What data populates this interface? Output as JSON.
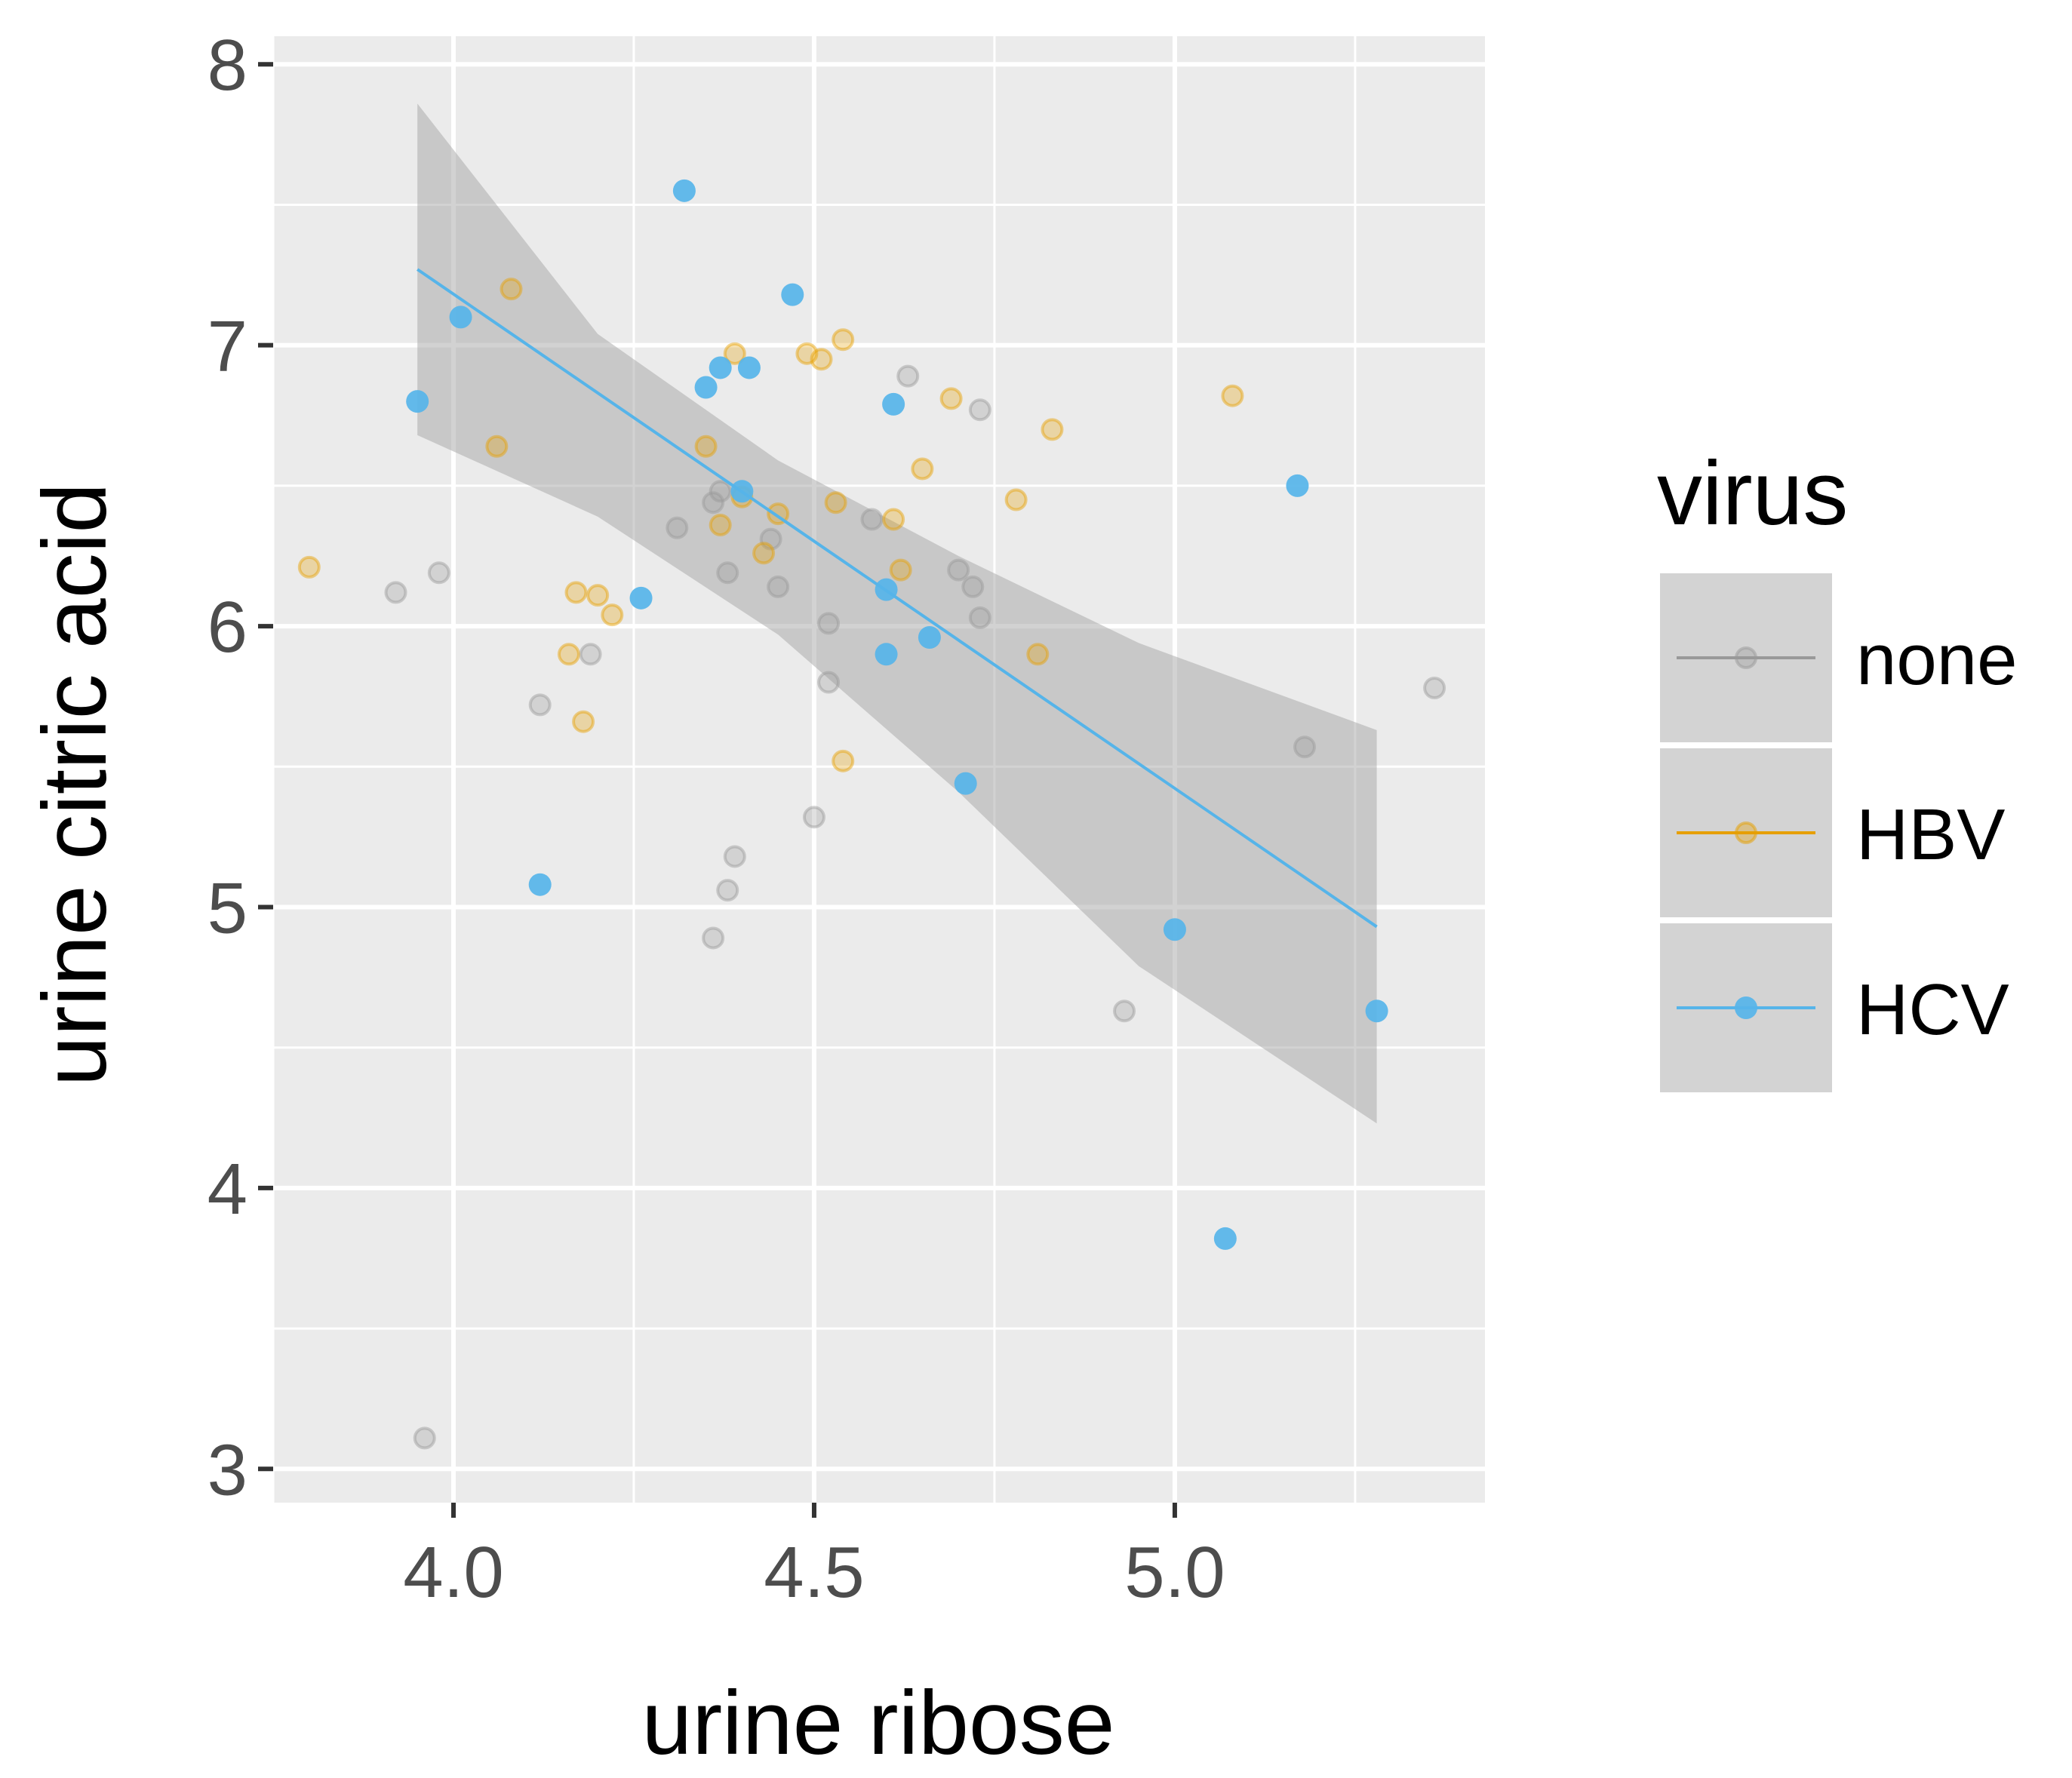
{
  "chart_data": {
    "type": "scatter",
    "xlabel": "urine ribose",
    "ylabel": "urine citric acid",
    "xlim": [
      3.75,
      5.43
    ],
    "ylim": [
      2.88,
      8.1
    ],
    "x_ticks": [
      4.0,
      4.5,
      5.0
    ],
    "x_tick_labels": [
      "4.0",
      "4.5",
      "5.0"
    ],
    "x_minor_ticks": [
      3.75,
      4.25,
      4.75,
      5.25
    ],
    "y_ticks": [
      3,
      4,
      5,
      6,
      7,
      8
    ],
    "y_tick_labels": [
      "3",
      "4",
      "5",
      "6",
      "7",
      "8"
    ],
    "y_minor_ticks": [
      3.5,
      4.5,
      5.5,
      6.5,
      7.5
    ],
    "grid": true,
    "background_color": "#EBEBEB",
    "legend": {
      "title": "virus",
      "position": "right"
    },
    "series": [
      {
        "name": "none",
        "color": "#999999",
        "faded": true,
        "points": [
          [
            3.92,
            6.12
          ],
          [
            3.98,
            6.19
          ],
          [
            3.96,
            3.11
          ],
          [
            4.12,
            5.72
          ],
          [
            4.19,
            5.9
          ],
          [
            4.31,
            6.35
          ],
          [
            4.36,
            6.44
          ],
          [
            4.37,
            6.48
          ],
          [
            4.38,
            6.19
          ],
          [
            4.44,
            6.31
          ],
          [
            4.45,
            6.14
          ],
          [
            4.52,
            6.01
          ],
          [
            4.52,
            5.8
          ],
          [
            4.5,
            5.32
          ],
          [
            4.39,
            5.18
          ],
          [
            4.38,
            5.06
          ],
          [
            4.36,
            4.89
          ],
          [
            4.58,
            6.38
          ],
          [
            4.63,
            6.89
          ],
          [
            4.73,
            6.77
          ],
          [
            4.7,
            6.2
          ],
          [
            4.72,
            6.14
          ],
          [
            4.73,
            6.03
          ],
          [
            4.93,
            4.63
          ],
          [
            5.18,
            5.57
          ],
          [
            5.36,
            5.78
          ]
        ]
      },
      {
        "name": "HBV",
        "color": "#E69F00",
        "faded": true,
        "points": [
          [
            3.8,
            6.21
          ],
          [
            4.06,
            6.64
          ],
          [
            4.08,
            7.2
          ],
          [
            4.16,
            5.9
          ],
          [
            4.17,
            6.12
          ],
          [
            4.18,
            5.66
          ],
          [
            4.2,
            6.11
          ],
          [
            4.22,
            6.04
          ],
          [
            4.35,
            6.64
          ],
          [
            4.37,
            6.36
          ],
          [
            4.39,
            6.97
          ],
          [
            4.4,
            6.46
          ],
          [
            4.43,
            6.26
          ],
          [
            4.45,
            6.4
          ],
          [
            4.49,
            6.97
          ],
          [
            4.51,
            6.95
          ],
          [
            4.53,
            6.44
          ],
          [
            4.54,
            7.02
          ],
          [
            4.54,
            5.52
          ],
          [
            4.61,
            6.38
          ],
          [
            4.62,
            6.2
          ],
          [
            4.65,
            6.56
          ],
          [
            4.69,
            6.81
          ],
          [
            4.78,
            6.45
          ],
          [
            4.81,
            5.9
          ],
          [
            4.83,
            6.7
          ],
          [
            5.08,
            6.82
          ]
        ]
      },
      {
        "name": "HCV",
        "color": "#56B4E9",
        "faded": false,
        "points": [
          [
            3.95,
            6.8
          ],
          [
            4.01,
            7.1
          ],
          [
            4.12,
            5.08
          ],
          [
            4.26,
            6.1
          ],
          [
            4.32,
            7.55
          ],
          [
            4.35,
            6.85
          ],
          [
            4.37,
            6.92
          ],
          [
            4.4,
            6.48
          ],
          [
            4.41,
            6.92
          ],
          [
            4.47,
            7.18
          ],
          [
            4.6,
            6.13
          ],
          [
            4.6,
            5.9
          ],
          [
            4.61,
            6.79
          ],
          [
            4.66,
            5.96
          ],
          [
            4.71,
            5.44
          ],
          [
            5.0,
            4.92
          ],
          [
            5.07,
            3.82
          ],
          [
            5.17,
            6.5
          ],
          [
            5.28,
            4.63
          ]
        ]
      }
    ],
    "fit": {
      "series": "HCV",
      "method": "linear",
      "line": [
        [
          3.95,
          7.27
        ],
        [
          5.28,
          4.93
        ]
      ],
      "ribbon": [
        [
          3.95,
          6.68,
          7.86
        ],
        [
          4.2,
          6.39,
          7.04
        ],
        [
          4.45,
          5.97,
          6.59
        ],
        [
          4.7,
          5.41,
          6.25
        ],
        [
          4.95,
          4.79,
          5.94
        ],
        [
          5.28,
          4.23,
          5.63
        ]
      ],
      "ribbon_color": "#A6A6A6"
    }
  }
}
